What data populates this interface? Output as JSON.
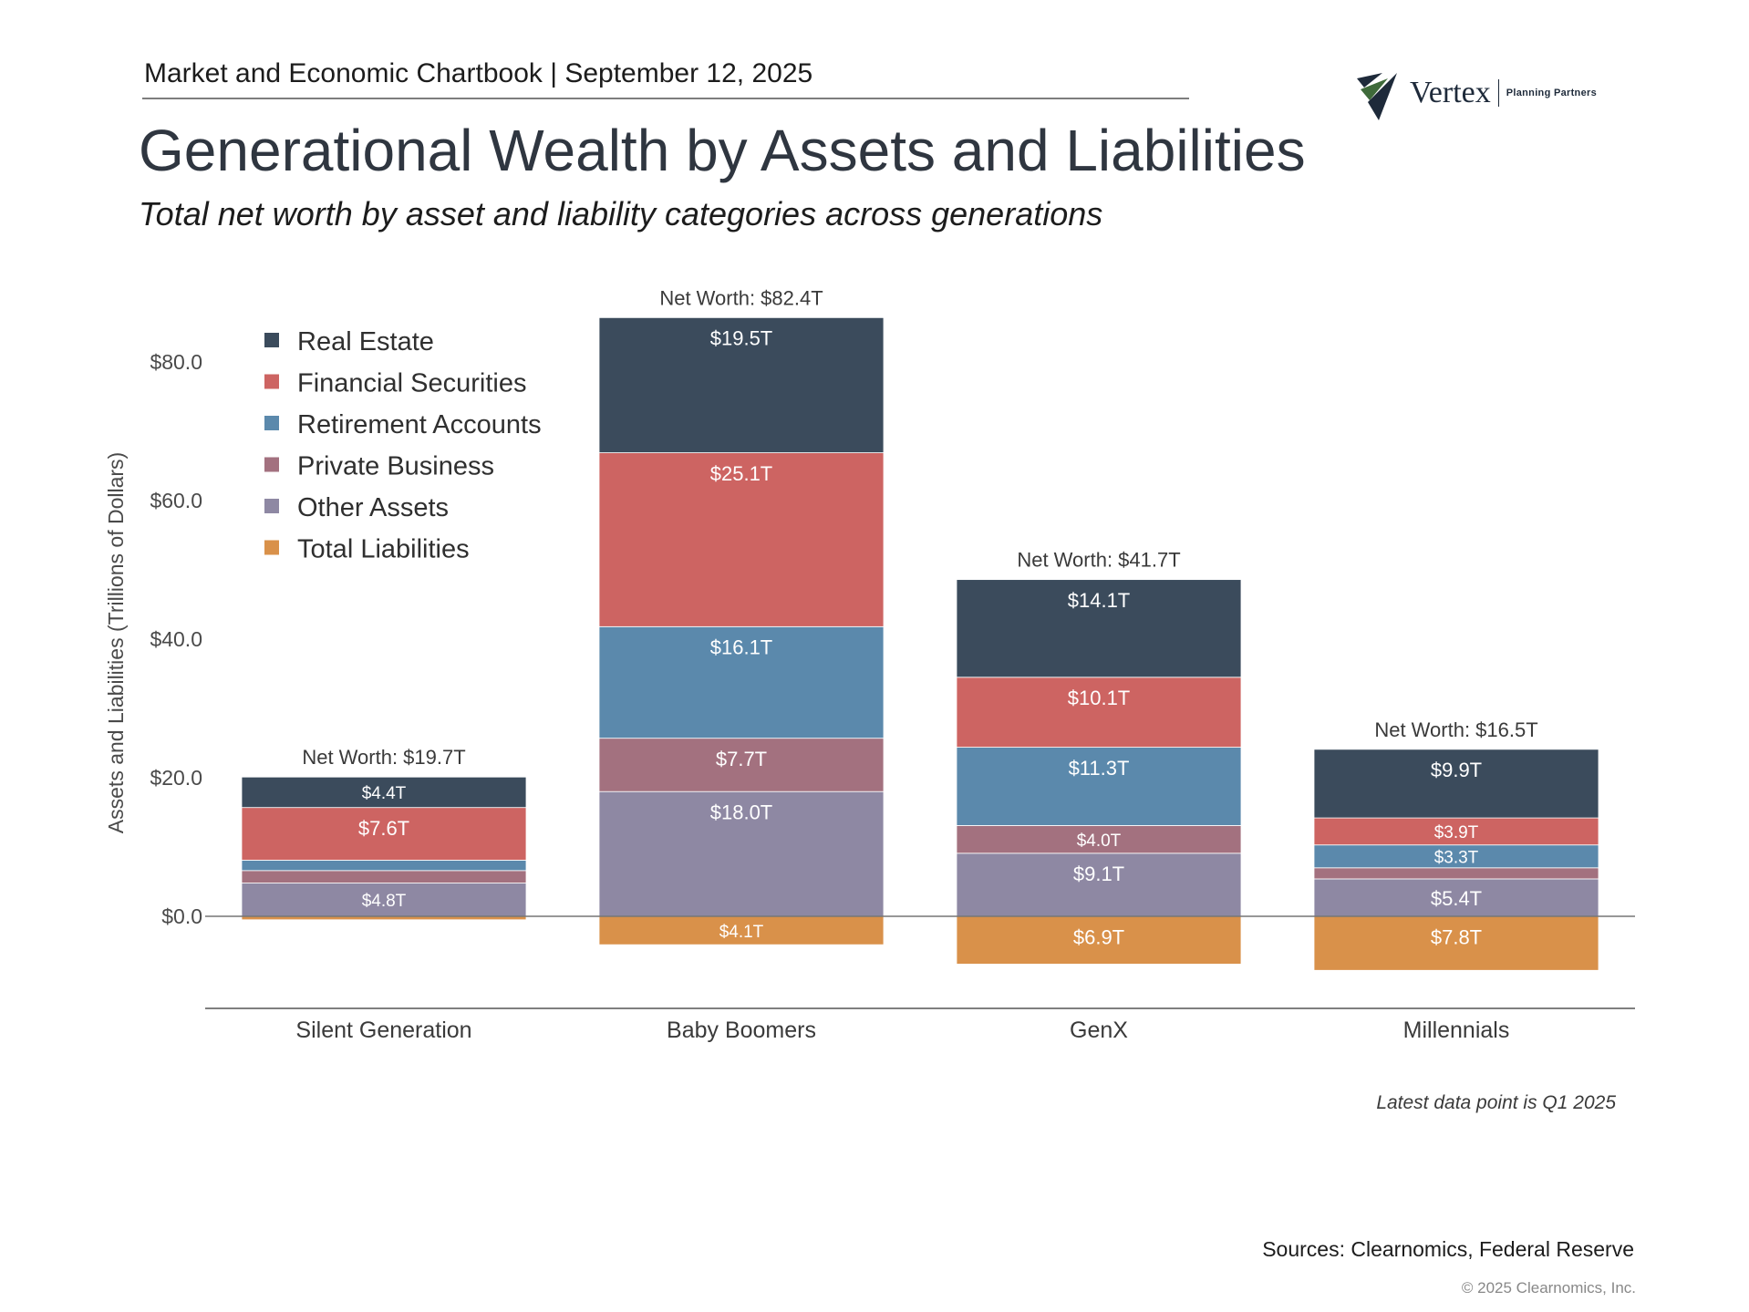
{
  "header": {
    "chartbook_line": "Market and Economic Chartbook | September 12, 2025"
  },
  "logo": {
    "wordmark": "Vertex",
    "tagline": "Planning Partners"
  },
  "chart_data": {
    "type": "bar",
    "stacked": true,
    "title": "Generational Wealth by Assets and Liabilities",
    "subtitle": "Total net worth by asset and liability categories across generations",
    "ylabel": "Assets and Liabilities (Trillions of Dollars)",
    "xlabel": "",
    "ylim": [
      -10,
      87
    ],
    "yticks": [
      0,
      20,
      40,
      60,
      80
    ],
    "ytick_labels": [
      "$0.0",
      "$20.0",
      "$40.0",
      "$60.0",
      "$80.0"
    ],
    "grid": false,
    "legend_position": "top-left",
    "categories": [
      "Silent Generation",
      "Baby Boomers",
      "GenX",
      "Millennials"
    ],
    "net_worth_labels": [
      "Net Worth: $19.7T",
      "Net Worth: $82.4T",
      "Net Worth: $41.7T",
      "Net Worth: $16.5T"
    ],
    "series": [
      {
        "name": "Total Liabilities",
        "color": "#d9914a",
        "values": [
          -0.5,
          -4.1,
          -6.9,
          -7.8
        ],
        "labels": [
          "",
          "$4.1T",
          "$6.9T",
          "$7.8T"
        ]
      },
      {
        "name": "Other Assets",
        "color": "#8e88a3",
        "values": [
          4.8,
          18.0,
          9.1,
          5.4
        ],
        "labels": [
          "$4.8T",
          "$18.0T",
          "$9.1T",
          "$5.4T"
        ]
      },
      {
        "name": "Private Business",
        "color": "#a3717f",
        "values": [
          1.8,
          7.7,
          4.0,
          1.6
        ],
        "labels": [
          "",
          "$7.7T",
          "$4.0T",
          ""
        ]
      },
      {
        "name": "Retirement Accounts",
        "color": "#5b89ac",
        "values": [
          1.5,
          16.1,
          11.3,
          3.3
        ],
        "labels": [
          "",
          "$16.1T",
          "$11.3T",
          "$3.3T"
        ]
      },
      {
        "name": "Financial Securities",
        "color": "#cd6462",
        "values": [
          7.6,
          25.1,
          10.1,
          3.9
        ],
        "labels": [
          "$7.6T",
          "$25.1T",
          "$10.1T",
          "$3.9T"
        ]
      },
      {
        "name": "Real Estate",
        "color": "#3b4b5c",
        "values": [
          4.4,
          19.5,
          14.1,
          9.9
        ],
        "labels": [
          "$4.4T",
          "$19.5T",
          "$14.1T",
          "$9.9T"
        ]
      }
    ],
    "legend_order": [
      "Real Estate",
      "Financial Securities",
      "Retirement Accounts",
      "Private Business",
      "Other Assets",
      "Total Liabilities"
    ]
  },
  "footnote": "Latest data point is Q1 2025",
  "sources": "Sources: Clearnomics, Federal Reserve",
  "copyright": "© 2025 Clearnomics, Inc."
}
